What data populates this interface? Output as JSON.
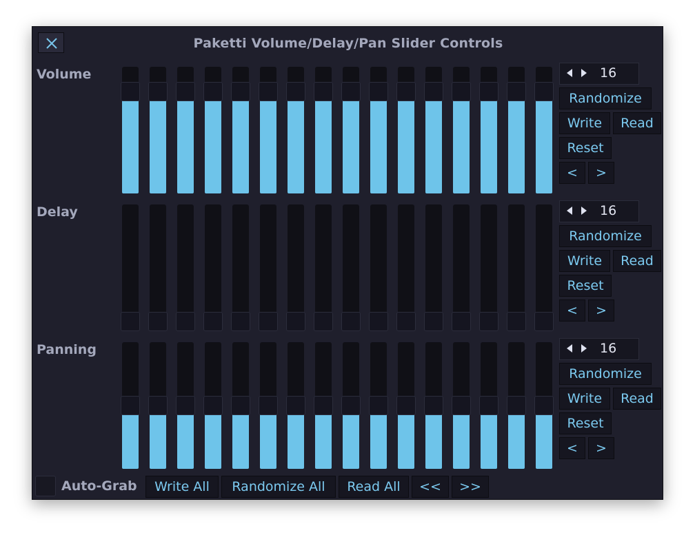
{
  "window": {
    "title": "Paketti Volume/Delay/Pan Slider Controls"
  },
  "sections": [
    {
      "key": "volume",
      "label": "Volume",
      "count": "16",
      "levels": [
        0.86,
        0.86,
        0.86,
        0.86,
        0.86,
        0.86,
        0.86,
        0.86,
        0.86,
        0.86,
        0.86,
        0.86,
        0.86,
        0.86,
        0.86,
        0.86
      ],
      "buttons": {
        "randomize": "Randomize",
        "write": "Write",
        "read": "Read",
        "reset": "Reset",
        "prev": "<",
        "next": ">"
      }
    },
    {
      "key": "delay",
      "label": "Delay",
      "count": "16",
      "levels": [
        0,
        0,
        0,
        0,
        0,
        0,
        0,
        0,
        0,
        0,
        0,
        0,
        0,
        0,
        0,
        0
      ],
      "buttons": {
        "randomize": "Randomize",
        "write": "Write",
        "read": "Read",
        "reset": "Reset",
        "prev": "<",
        "next": ">"
      }
    },
    {
      "key": "panning",
      "label": "Panning",
      "count": "16",
      "levels": [
        0.5,
        0.5,
        0.5,
        0.5,
        0.5,
        0.5,
        0.5,
        0.5,
        0.5,
        0.5,
        0.5,
        0.5,
        0.5,
        0.5,
        0.5,
        0.5
      ],
      "buttons": {
        "randomize": "Randomize",
        "write": "Write",
        "read": "Read",
        "reset": "Reset",
        "prev": "<",
        "next": ">"
      }
    }
  ],
  "footer": {
    "auto_grab_label": "Auto-Grab",
    "auto_grab_checked": false,
    "write_all": "Write All",
    "randomize_all": "Randomize All",
    "read_all": "Read All",
    "prev_all": "<<",
    "next_all": ">>"
  },
  "colors": {
    "background": "#1f1f2c",
    "accent": "#6ec4ea",
    "button_text": "#7ccaf0",
    "label_text": "#a4a8bc"
  }
}
